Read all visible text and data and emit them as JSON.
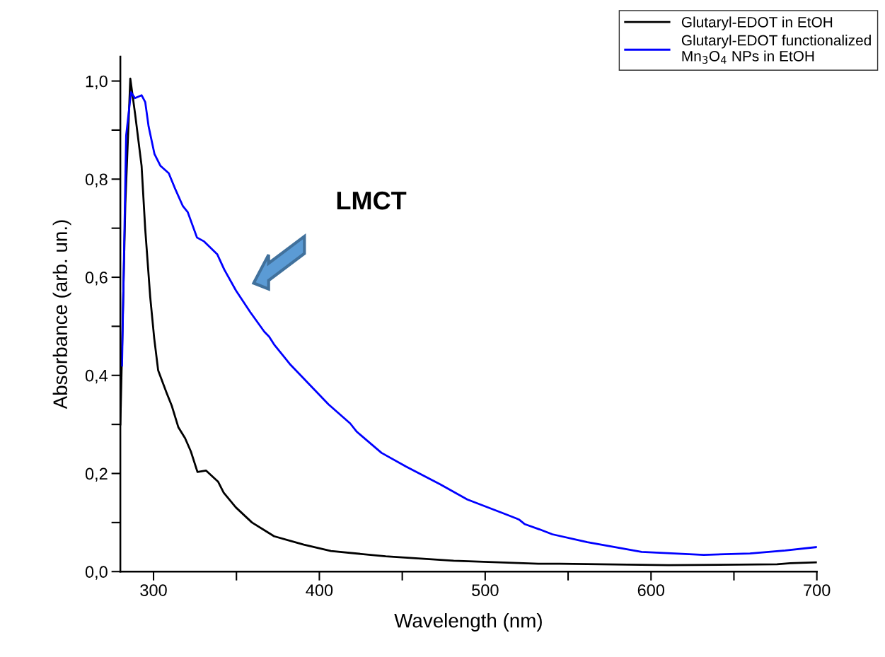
{
  "chart_data": {
    "type": "line",
    "xlabel": "Wavelength (nm)",
    "ylabel": "Absorbance (arb. un.)",
    "xlim": [
      280,
      700
    ],
    "ylim": [
      0,
      1.05
    ],
    "xticks": [
      300,
      {
        "value": 350,
        "label": null
      },
      400,
      {
        "value": 450,
        "label": null
      },
      500,
      {
        "value": 550,
        "label": null
      },
      600,
      {
        "value": 650,
        "label": null
      },
      700
    ],
    "yticks": [
      {
        "value": 0,
        "label": "0,0"
      },
      {
        "value": 0.1,
        "label": null
      },
      {
        "value": 0.2,
        "label": "0,2"
      },
      {
        "value": 0.3,
        "label": null
      },
      {
        "value": 0.4,
        "label": "0,4"
      },
      {
        "value": 0.5,
        "label": null
      },
      {
        "value": 0.6,
        "label": "0,6"
      },
      {
        "value": 0.7,
        "label": null
      },
      {
        "value": 0.8,
        "label": "0,8"
      },
      {
        "value": 0.9,
        "label": null
      },
      {
        "value": 1.0,
        "label": "1,0"
      }
    ],
    "grid": false,
    "legend": "top right",
    "line_style": "solid",
    "marker": "none",
    "series": [
      {
        "name": "Glutaryl-EDOT in EtOH",
        "color": "#000000",
        "x": [
          280,
          283,
          286,
          289,
          292.8,
          295,
          298,
          300.4,
          302.8,
          307.8,
          311,
          315,
          319,
          322.5,
          326.5,
          331.6,
          339,
          342.3,
          349.6,
          359.4,
          368.4,
          372.7,
          390.6,
          407,
          440,
          481,
          532,
          545,
          610.5,
          676,
          684,
          700
        ],
        "values": [
          0.3,
          0.75,
          1.005,
          0.93,
          0.827,
          0.698,
          0.56,
          0.476,
          0.41,
          0.365,
          0.338,
          0.294,
          0.272,
          0.245,
          0.203,
          0.206,
          0.183,
          0.161,
          0.131,
          0.1,
          0.081,
          0.072,
          0.055,
          0.042,
          0.031,
          0.022,
          0.016,
          0.016,
          0.013,
          0.015,
          0.017,
          0.019
        ]
      },
      {
        "name": "Glutaryl-EDOT functionalized\nMn$_{3}$O$_{4}$ NPs in EtOH",
        "color": "#0000ff",
        "x": [
          281,
          283.5,
          286.4,
          288.8,
          292.8,
          295,
          297,
          300.6,
          304.2,
          309.2,
          312.7,
          317.7,
          320.6,
          326.2,
          330.5,
          338.4,
          342.6,
          349.7,
          358.3,
          366.8,
          369.7,
          372.7,
          382.5,
          405.5,
          418.6,
          422.6,
          437.5,
          452.3,
          472.8,
          489.2,
          512.2,
          519,
          520.4,
          523.7,
          532.8,
          540.5,
          561.6,
          594.3,
          631.8,
          659.6,
          681,
          700
        ],
        "values": [
          0.42,
          0.889,
          0.977,
          0.965,
          0.971,
          0.957,
          0.908,
          0.851,
          0.827,
          0.812,
          0.783,
          0.745,
          0.733,
          0.681,
          0.673,
          0.647,
          0.616,
          0.573,
          0.529,
          0.489,
          0.479,
          0.463,
          0.422,
          0.341,
          0.302,
          0.285,
          0.242,
          0.214,
          0.178,
          0.147,
          0.117,
          0.108,
          0.106,
          0.097,
          0.086,
          0.076,
          0.06,
          0.04,
          0.034,
          0.037,
          0.043,
          0.05
        ]
      }
    ],
    "annotations": [
      "LMCT"
    ]
  }
}
